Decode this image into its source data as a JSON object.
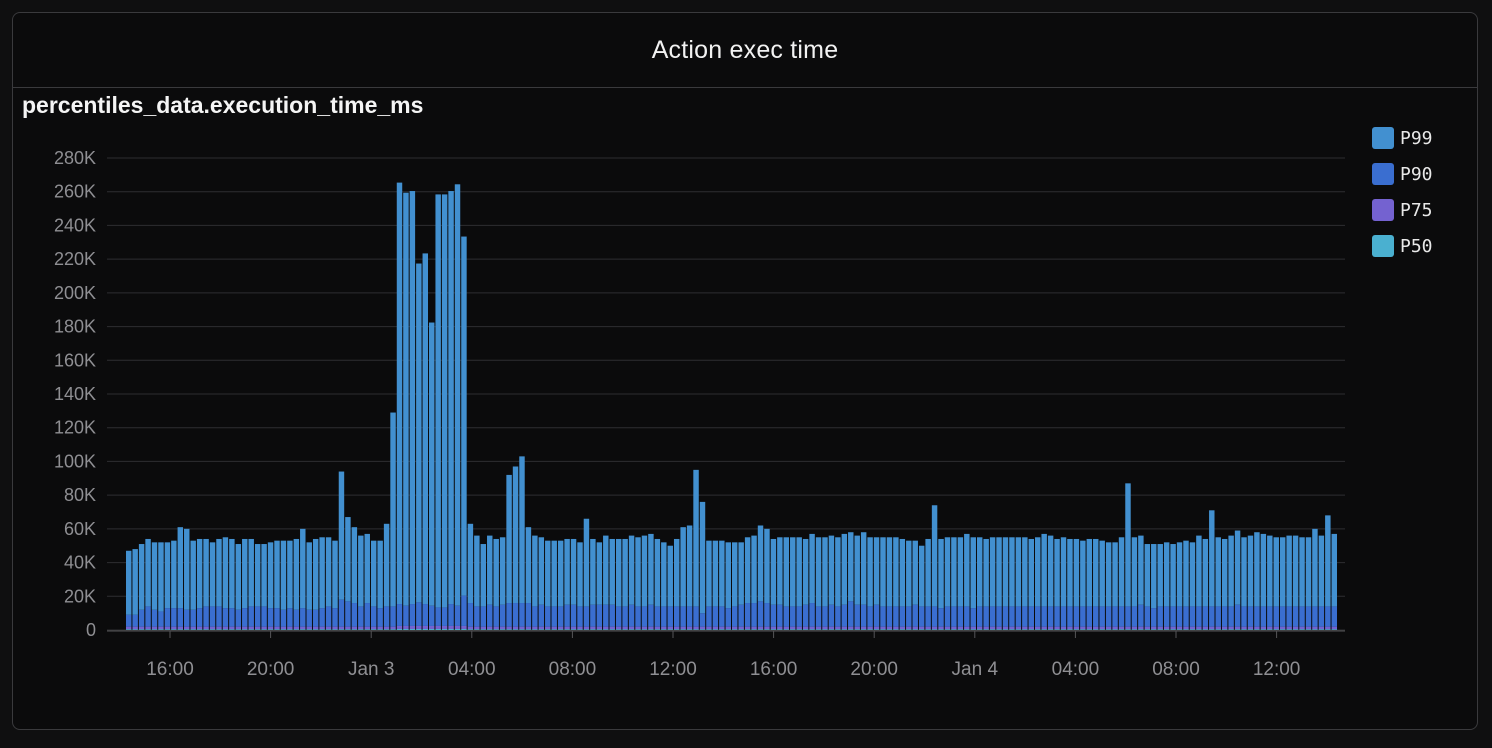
{
  "panel": {
    "title": "Action exec time"
  },
  "chart_data": {
    "type": "bar",
    "stacked": true,
    "title": "percentiles_data.execution_time_ms",
    "xlabel": "",
    "ylabel": "",
    "ylim": [
      0,
      280000
    ],
    "y_ticks": [
      "0",
      "20K",
      "40K",
      "60K",
      "80K",
      "100K",
      "120K",
      "140K",
      "160K",
      "180K",
      "200K",
      "220K",
      "240K",
      "260K",
      "280K"
    ],
    "x_ticks": [
      "16:00",
      "20:00",
      "Jan 3",
      "04:00",
      "08:00",
      "12:00",
      "16:00",
      "20:00",
      "Jan 4",
      "04:00",
      "08:00",
      "12:00"
    ],
    "grid": true,
    "legend_position": "top-right",
    "colors": {
      "P99": "#4290d0",
      "P90": "#3a6ed0",
      "P75": "#7462d0",
      "P50": "#4ab0d0"
    },
    "series": [
      {
        "name": "P99",
        "values": [
          38000,
          39000,
          39000,
          40000,
          40000,
          41000,
          39000,
          40000,
          48000,
          48000,
          41000,
          41000,
          40000,
          38000,
          40000,
          42000,
          41000,
          39000,
          41000,
          40000,
          37000,
          37000,
          39000,
          40000,
          41000,
          40000,
          42000,
          47000,
          40000,
          42000,
          42000,
          41000,
          40000,
          76000,
          50000,
          45000,
          42000,
          41000,
          39000,
          40000,
          49000,
          115000,
          250000,
          245000,
          245000,
          201000,
          208000,
          168000,
          245000,
          245000,
          245000,
          250000,
          213000,
          47000,
          42000,
          37000,
          41000,
          40000,
          40000,
          76000,
          81000,
          87000,
          45000,
          42000,
          40000,
          39000,
          39000,
          39000,
          39000,
          39000,
          38000,
          52000,
          39000,
          37000,
          41000,
          39000,
          40000,
          40000,
          41000,
          41000,
          42000,
          42000,
          40000,
          38000,
          36000,
          40000,
          47000,
          48000,
          81000,
          66000,
          39000,
          39000,
          39000,
          39000,
          38000,
          37000,
          39000,
          40000,
          45000,
          44000,
          39000,
          40000,
          41000,
          41000,
          41000,
          39000,
          41000,
          41000,
          41000,
          41000,
          41000,
          42000,
          41000,
          41000,
          43000,
          41000,
          40000,
          41000,
          41000,
          41000,
          40000,
          39000,
          38000,
          36000,
          40000,
          60000,
          41000,
          41000,
          41000,
          41000,
          43000,
          42000,
          41000,
          40000,
          41000,
          41000,
          41000,
          41000,
          41000,
          41000,
          40000,
          41000,
          43000,
          42000,
          40000,
          41000,
          40000,
          40000,
          39000,
          40000,
          40000,
          39000,
          38000,
          38000,
          41000,
          73000,
          41000,
          41000,
          37000,
          38000,
          37000,
          38000,
          37000,
          38000,
          39000,
          38000,
          42000,
          40000,
          57000,
          41000,
          40000,
          42000,
          44000,
          41000,
          42000,
          44000,
          43000,
          42000,
          41000,
          41000,
          42000,
          42000,
          41000,
          41000,
          46000,
          42000,
          54000,
          43000
        ]
      },
      {
        "name": "P90",
        "values": [
          7000,
          7000,
          10000,
          12000,
          10000,
          9000,
          11000,
          11000,
          11000,
          10000,
          10000,
          11000,
          12000,
          12000,
          12000,
          11000,
          11000,
          10000,
          11000,
          12000,
          12000,
          12000,
          11000,
          11000,
          10000,
          11000,
          10000,
          11000,
          10000,
          10000,
          11000,
          12000,
          11000,
          16000,
          15000,
          14000,
          12000,
          14000,
          12000,
          11000,
          12000,
          12000,
          13000,
          12000,
          13000,
          14000,
          13000,
          12000,
          11000,
          11000,
          13000,
          12000,
          18000,
          14000,
          12000,
          12000,
          13000,
          12000,
          13000,
          14000,
          14000,
          14000,
          14000,
          12000,
          13000,
          12000,
          12000,
          12000,
          13000,
          13000,
          12000,
          12000,
          13000,
          13000,
          13000,
          13000,
          12000,
          12000,
          13000,
          12000,
          12000,
          13000,
          12000,
          12000,
          12000,
          12000,
          12000,
          12000,
          12000,
          8000,
          12000,
          12000,
          12000,
          11000,
          12000,
          13000,
          14000,
          14000,
          15000,
          14000,
          13000,
          13000,
          12000,
          12000,
          12000,
          13000,
          14000,
          12000,
          12000,
          13000,
          12000,
          13000,
          15000,
          13000,
          13000,
          12000,
          13000,
          12000,
          12000,
          12000,
          12000,
          12000,
          13000,
          12000,
          12000,
          12000,
          11000,
          12000,
          12000,
          12000,
          12000,
          11000,
          12000,
          12000,
          12000,
          12000,
          12000,
          12000,
          12000,
          12000,
          12000,
          12000,
          12000,
          12000,
          12000,
          12000,
          12000,
          12000,
          12000,
          12000,
          12000,
          12000,
          12000,
          12000,
          12000,
          12000,
          12000,
          13000,
          12000,
          11000,
          12000,
          12000,
          12000,
          12000,
          12000,
          12000,
          12000,
          12000,
          12000,
          12000,
          12000,
          12000,
          13000,
          12000,
          12000,
          12000,
          12000,
          12000,
          12000,
          12000,
          12000,
          12000,
          12000,
          12000,
          12000,
          12000,
          12000,
          12000,
          12000,
          12000,
          12000,
          12000,
          12000,
          12000,
          10000,
          10000
        ]
      },
      {
        "name": "P75",
        "values": [
          1500,
          1500,
          1500,
          1500,
          1500,
          1500,
          1500,
          1500,
          1500,
          1500,
          1500,
          1500,
          1500,
          1500,
          1500,
          1500,
          1500,
          1500,
          1500,
          1500,
          1500,
          1500,
          1500,
          1500,
          1500,
          1500,
          1500,
          1500,
          1500,
          1500,
          1500,
          1500,
          1500,
          1500,
          1500,
          1500,
          1500,
          1500,
          1500,
          1500,
          1500,
          1500,
          1800,
          1800,
          1800,
          1800,
          1800,
          1800,
          1800,
          1800,
          1800,
          1800,
          1800,
          1500,
          1500,
          1500,
          1500,
          1500,
          1500,
          1500,
          1500,
          1500,
          1500,
          1500,
          1500,
          1500,
          1500,
          1500,
          1500,
          1500,
          1500,
          1500,
          1500,
          1500,
          1500,
          1500,
          1500,
          1500,
          1500,
          1500,
          1500,
          1500,
          1500,
          1500,
          1500,
          1500,
          1500,
          1500,
          1500,
          1500,
          1500,
          1500,
          1500,
          1500,
          1500,
          1500,
          1500,
          1500,
          1500,
          1500,
          1500,
          1500,
          1500,
          1500,
          1500,
          1500,
          1500,
          1500,
          1500,
          1500,
          1500,
          1500,
          1500,
          1500,
          1500,
          1500,
          1500,
          1500,
          1500,
          1500,
          1500,
          1500,
          1500,
          1500,
          1500,
          1500,
          1500,
          1500,
          1500,
          1500,
          1500,
          1500,
          1500,
          1500,
          1500,
          1500,
          1500,
          1500,
          1500,
          1500,
          1500,
          1500,
          1500,
          1500,
          1500,
          1500,
          1500,
          1500,
          1500,
          1500,
          1500,
          1500,
          1500,
          1500,
          1500,
          1500,
          1500,
          1500,
          1500,
          1500,
          1500,
          1500,
          1500,
          1500,
          1500,
          1500,
          1500,
          1500,
          1500,
          1500,
          1500,
          1500,
          1500,
          1500,
          1500,
          1500,
          1500,
          1500,
          1500,
          1500,
          1500,
          1500,
          1500,
          1500,
          1500,
          1500,
          1500,
          1500,
          1500,
          1500,
          1500,
          1500,
          1500,
          1500
        ]
      },
      {
        "name": "P50",
        "values": [
          500,
          500,
          500,
          500,
          500,
          500,
          500,
          500,
          500,
          500,
          500,
          500,
          500,
          500,
          500,
          500,
          500,
          500,
          500,
          500,
          500,
          500,
          500,
          500,
          500,
          500,
          500,
          500,
          500,
          500,
          500,
          500,
          500,
          500,
          500,
          500,
          500,
          500,
          500,
          500,
          500,
          500,
          600,
          600,
          600,
          600,
          600,
          600,
          600,
          600,
          600,
          600,
          600,
          500,
          500,
          500,
          500,
          500,
          500,
          500,
          500,
          500,
          500,
          500,
          500,
          500,
          500,
          500,
          500,
          500,
          500,
          500,
          500,
          500,
          500,
          500,
          500,
          500,
          500,
          500,
          500,
          500,
          500,
          500,
          500,
          500,
          500,
          500,
          500,
          500,
          500,
          500,
          500,
          500,
          500,
          500,
          500,
          500,
          500,
          500,
          500,
          500,
          500,
          500,
          500,
          500,
          500,
          500,
          500,
          500,
          500,
          500,
          500,
          500,
          500,
          500,
          500,
          500,
          500,
          500,
          500,
          500,
          500,
          500,
          500,
          500,
          500,
          500,
          500,
          500,
          500,
          500,
          500,
          500,
          500,
          500,
          500,
          500,
          500,
          500,
          500,
          500,
          500,
          500,
          500,
          500,
          500,
          500,
          500,
          500,
          500,
          500,
          500,
          500,
          500,
          500,
          500,
          500,
          500,
          500,
          500,
          500,
          500,
          500,
          500,
          500,
          500,
          500,
          500,
          500,
          500,
          500,
          500,
          500,
          500,
          500,
          500,
          500,
          500,
          500,
          500,
          500,
          500,
          500,
          500,
          500,
          500,
          500,
          500,
          500,
          500,
          500,
          500,
          500
        ]
      }
    ]
  }
}
